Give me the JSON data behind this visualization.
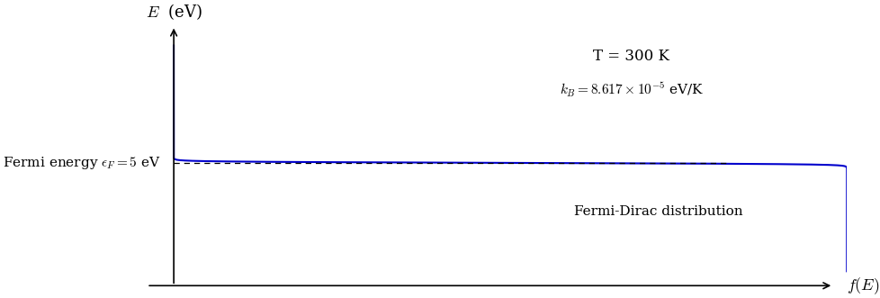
{
  "T": 300,
  "kB": 8.617e-05,
  "epsilon_F": 5.0,
  "E_min": 0.0,
  "E_max": 10.5,
  "curve_color": "#0000CC",
  "dashed_color": "#000000",
  "text_T": "T = 300 K",
  "text_kB": "$k_B = 8.617 \\times 10^{-5}$ eV/K",
  "text_fermi": "Fermi energy $\\epsilon_F = 5$ eV",
  "text_fd": "Fermi-Dirac distribution",
  "xlabel": "$f(E)$",
  "ylabel": "$E$  (eV)",
  "background_color": "#ffffff",
  "figsize": [
    9.79,
    3.31
  ],
  "dpi": 100
}
